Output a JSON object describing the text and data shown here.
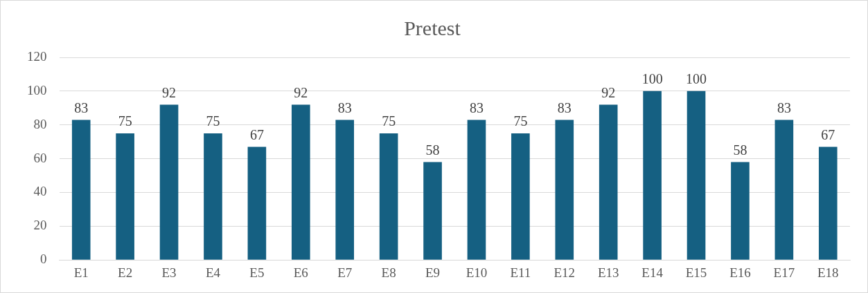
{
  "chart_data": {
    "type": "bar",
    "title": "Pretest",
    "categories": [
      "E1",
      "E2",
      "E3",
      "E4",
      "E5",
      "E6",
      "E7",
      "E8",
      "E9",
      "E10",
      "E11",
      "E12",
      "E13",
      "E14",
      "E15",
      "E16",
      "E17",
      "E18"
    ],
    "values": [
      83,
      75,
      92,
      75,
      67,
      92,
      83,
      75,
      58,
      83,
      75,
      83,
      92,
      100,
      100,
      58,
      83,
      67
    ],
    "color": "#156082",
    "ylim": [
      0,
      120
    ],
    "yticks": [
      0,
      20,
      40,
      60,
      80,
      100,
      120
    ],
    "grid": "y",
    "data_labels": true,
    "legend": false
  }
}
